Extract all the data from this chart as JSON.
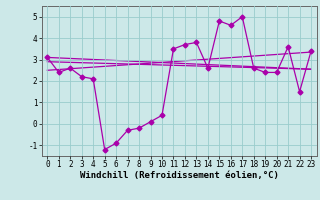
{
  "x": [
    0,
    1,
    2,
    3,
    4,
    5,
    6,
    7,
    8,
    9,
    10,
    11,
    12,
    13,
    14,
    15,
    16,
    17,
    18,
    19,
    20,
    21,
    22,
    23
  ],
  "y_main": [
    3.1,
    2.4,
    2.6,
    2.2,
    2.1,
    -1.2,
    -0.9,
    -0.3,
    -0.2,
    0.1,
    0.4,
    3.5,
    3.7,
    3.8,
    2.6,
    4.8,
    4.6,
    5.0,
    2.6,
    2.4,
    2.4,
    3.6,
    1.5,
    3.4
  ],
  "y_trend1_x": [
    0,
    23
  ],
  "y_trend1_y": [
    2.5,
    3.35
  ],
  "y_trend2_x": [
    0,
    23
  ],
  "y_trend2_y": [
    2.9,
    2.55
  ],
  "y_trend3_x": [
    0,
    23
  ],
  "y_trend3_y": [
    3.1,
    2.55
  ],
  "line_color": "#aa00aa",
  "bg_color": "#cce8e8",
  "grid_color": "#99cccc",
  "xlabel": "Windchill (Refroidissement éolien,°C)",
  "ylim": [
    -1.5,
    5.5
  ],
  "xlim": [
    -0.5,
    23.5
  ],
  "yticks": [
    -1,
    0,
    1,
    2,
    3,
    4,
    5
  ],
  "xticks": [
    0,
    1,
    2,
    3,
    4,
    5,
    6,
    7,
    8,
    9,
    10,
    11,
    12,
    13,
    14,
    15,
    16,
    17,
    18,
    19,
    20,
    21,
    22,
    23
  ],
  "marker": "D",
  "markersize": 2.5,
  "linewidth": 0.9,
  "xlabel_fontsize": 6.5,
  "tick_fontsize": 5.5
}
